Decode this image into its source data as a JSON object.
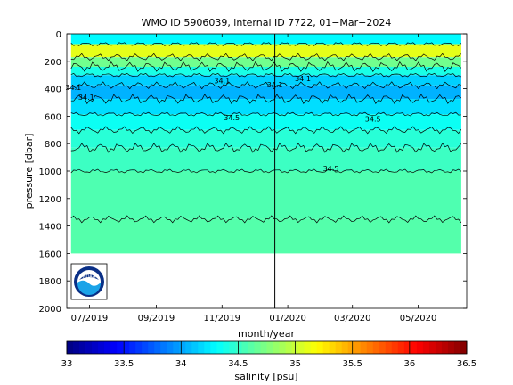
{
  "chart_data": {
    "type": "heatmap",
    "title": "WMO ID 5906039, internal ID 7722, 01−Mar−2024",
    "xlabel": "month/year",
    "ylabel": "pressure [dbar]",
    "x_range": [
      "2019-06-10",
      "2020-06-15"
    ],
    "x_ticks": [
      "07/2019",
      "09/2019",
      "11/2019",
      "01/2020",
      "03/2020",
      "05/2020"
    ],
    "y_range": [
      0,
      2000
    ],
    "y_reversed": true,
    "y_ticks": [
      0,
      200,
      400,
      600,
      800,
      1000,
      1200,
      1400,
      1600,
      1800,
      2000
    ],
    "data_extent": {
      "start": "2019-06-14",
      "end": "2020-06-10",
      "max_pressure": 1600
    },
    "vertical_marker": "2019-12-20",
    "layers": [
      {
        "pressure": 20,
        "salinity": 34.3
      },
      {
        "pressure": 130,
        "salinity": 35.1
      },
      {
        "pressure": 210,
        "salinity": 34.7
      },
      {
        "pressure": 270,
        "salinity": 34.4
      },
      {
        "pressure": 330,
        "salinity": 34.15
      },
      {
        "pressure": 420,
        "salinity": 34.05
      },
      {
        "pressure": 530,
        "salinity": 34.2
      },
      {
        "pressure": 640,
        "salinity": 34.35
      },
      {
        "pressure": 760,
        "salinity": 34.45
      },
      {
        "pressure": 900,
        "salinity": 34.52
      },
      {
        "pressure": 1100,
        "salinity": 34.58
      },
      {
        "pressure": 1600,
        "salinity": 34.6
      }
    ],
    "contour_labels": [
      {
        "text": "34.1",
        "date": "2019-06-16",
        "pressure": 410
      },
      {
        "text": "34.1",
        "date": "2019-06-28",
        "pressure": 480
      },
      {
        "text": "34.1",
        "date": "2019-11-01",
        "pressure": 360
      },
      {
        "text": "34.1",
        "date": "2019-12-20",
        "pressure": 390
      },
      {
        "text": "34.1",
        "date": "2020-01-15",
        "pressure": 345
      },
      {
        "text": "34.5",
        "date": "2019-11-10",
        "pressure": 630
      },
      {
        "text": "34.5",
        "date": "2020-02-10",
        "pressure": 1000
      },
      {
        "text": "34.5",
        "date": "2020-03-20",
        "pressure": 640
      }
    ],
    "colorbar": {
      "label": "salinity [psu]",
      "range": [
        33,
        36.5
      ],
      "ticks": [
        "33",
        "33.5",
        "34",
        "34.5",
        "35",
        "35.5",
        "36",
        "36.5"
      ],
      "colormap": "jet"
    },
    "logo": {
      "text": "NOAA",
      "colors": [
        "#0a2f86",
        "#1aa3e8",
        "#ffffff"
      ]
    }
  }
}
